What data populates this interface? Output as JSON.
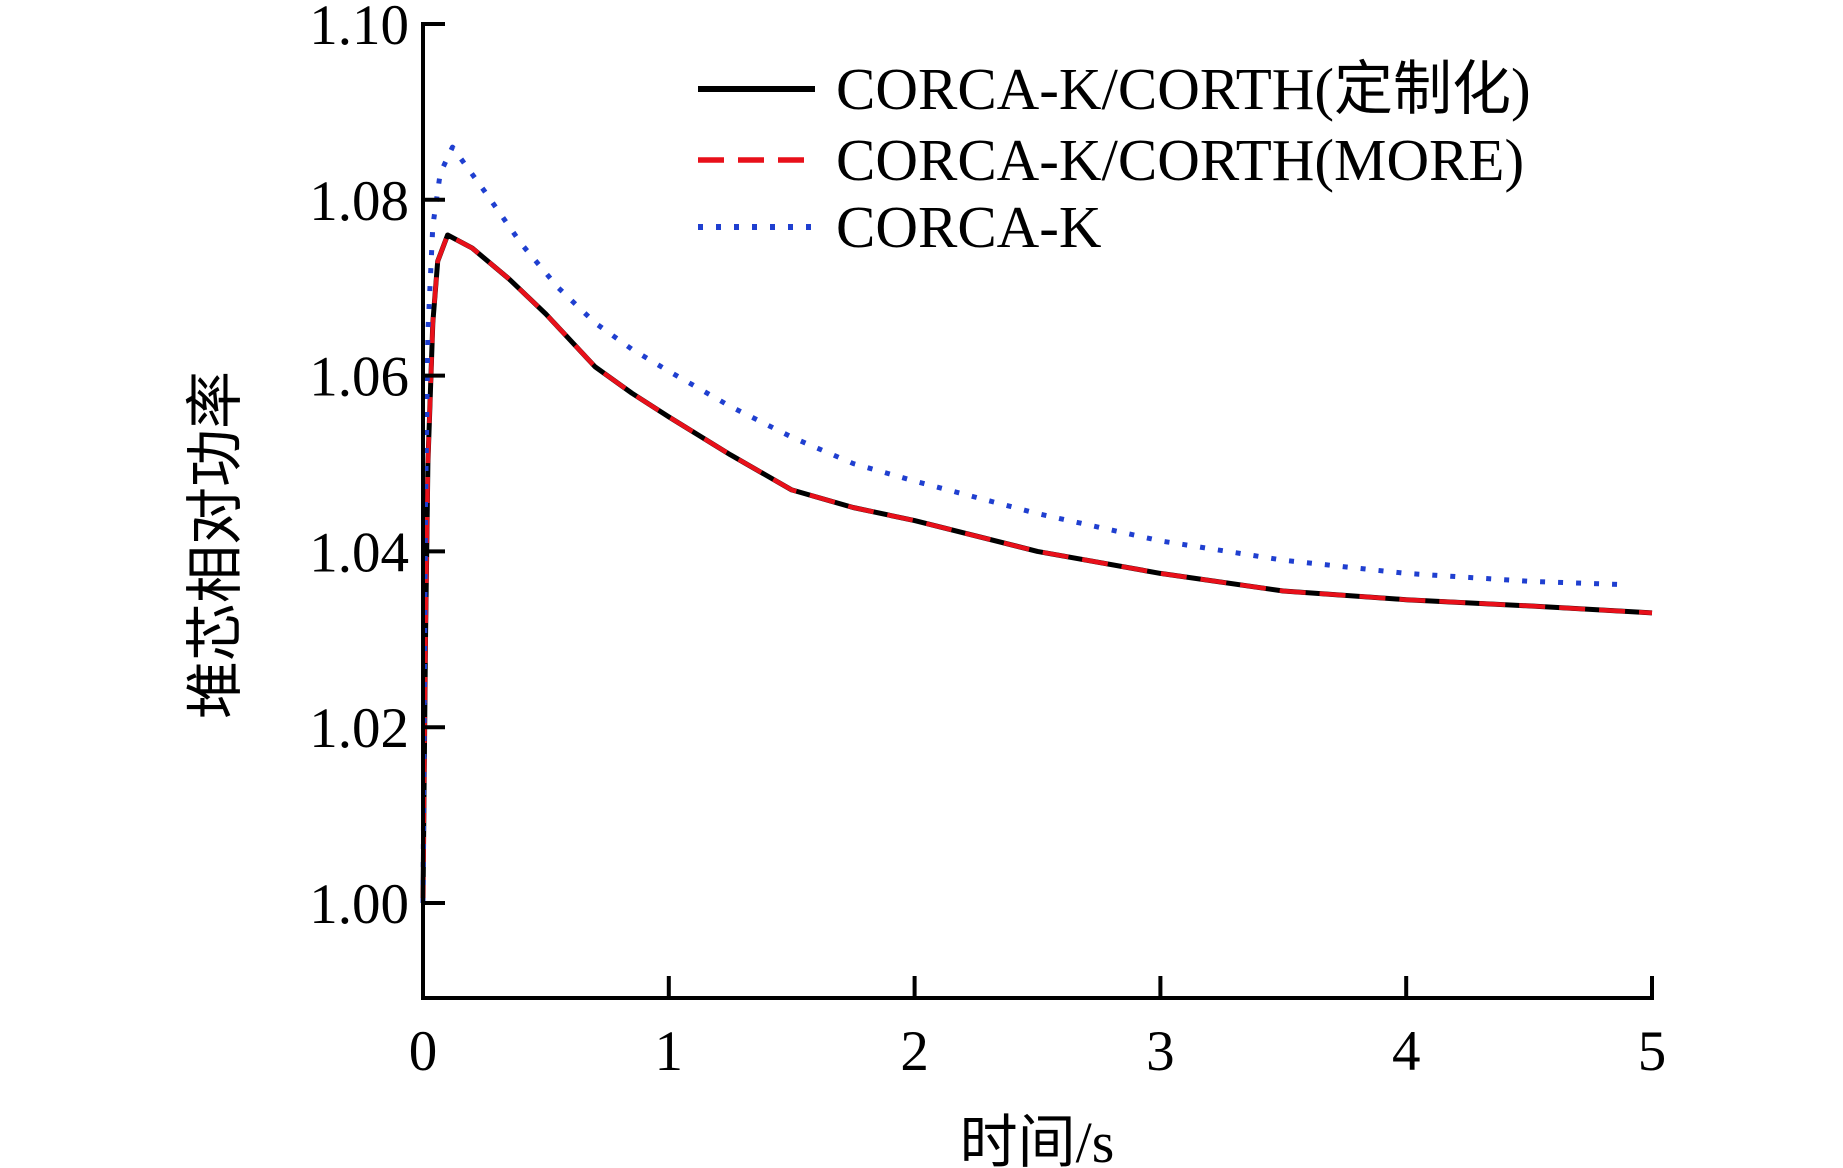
{
  "chart_data": {
    "type": "line",
    "title": "",
    "xlabel": "时间/s",
    "ylabel": "堆芯相对功率",
    "xlim": [
      0,
      5
    ],
    "ylim": [
      0.989,
      1.1
    ],
    "xticks": [
      0,
      1,
      2,
      3,
      4,
      5
    ],
    "xtick_labels": [
      "0",
      "1",
      "2",
      "3",
      "4",
      "5"
    ],
    "yticks": [
      1.0,
      1.02,
      1.04,
      1.06,
      1.08,
      1.1
    ],
    "ytick_labels": [
      "1.00",
      "1.02",
      "1.04",
      "1.06",
      "1.08",
      "1.10"
    ],
    "grid": false,
    "legend_position": "top-right",
    "series": [
      {
        "name": "CORCA-K/CORTH(定制化)",
        "color": "#000000",
        "style": "solid",
        "x": [
          0,
          0.01,
          0.02,
          0.04,
          0.06,
          0.1,
          0.2,
          0.35,
          0.5,
          0.7,
          0.85,
          1.0,
          1.25,
          1.5,
          1.75,
          2.0,
          2.5,
          3.0,
          3.5,
          4.0,
          4.5,
          5.0
        ],
        "y": [
          1.0,
          1.03,
          1.05,
          1.066,
          1.073,
          1.076,
          1.0745,
          1.071,
          1.067,
          1.061,
          1.058,
          1.0553,
          1.051,
          1.047,
          1.045,
          1.0435,
          1.04,
          1.0375,
          1.0355,
          1.0345,
          1.0338,
          1.033
        ]
      },
      {
        "name": "CORCA-K/CORTH(MORE)",
        "color": "#e8101a",
        "style": "dashed",
        "x": [
          0,
          0.01,
          0.02,
          0.04,
          0.06,
          0.1,
          0.2,
          0.35,
          0.5,
          0.7,
          0.85,
          1.0,
          1.25,
          1.5,
          1.75,
          2.0,
          2.5,
          3.0,
          3.5,
          4.0,
          4.5,
          5.0
        ],
        "y": [
          1.0,
          1.03,
          1.05,
          1.066,
          1.073,
          1.076,
          1.0745,
          1.071,
          1.067,
          1.061,
          1.058,
          1.0553,
          1.051,
          1.047,
          1.045,
          1.0435,
          1.04,
          1.0375,
          1.0355,
          1.0345,
          1.0338,
          1.033
        ]
      },
      {
        "name": "CORCA-K",
        "color": "#1f3fd0",
        "style": "dotted",
        "x": [
          0,
          0.01,
          0.02,
          0.04,
          0.07,
          0.12,
          0.25,
          0.4,
          0.55,
          0.7,
          0.85,
          1.0,
          1.25,
          1.5,
          1.75,
          2.0,
          2.5,
          3.0,
          3.5,
          4.0,
          4.5,
          4.9
        ],
        "y": [
          1.0,
          1.045,
          1.065,
          1.077,
          1.083,
          1.086,
          1.081,
          1.075,
          1.07,
          1.066,
          1.063,
          1.0605,
          1.0565,
          1.053,
          1.05,
          1.048,
          1.0443,
          1.0412,
          1.039,
          1.0375,
          1.0366,
          1.0362
        ]
      }
    ]
  }
}
